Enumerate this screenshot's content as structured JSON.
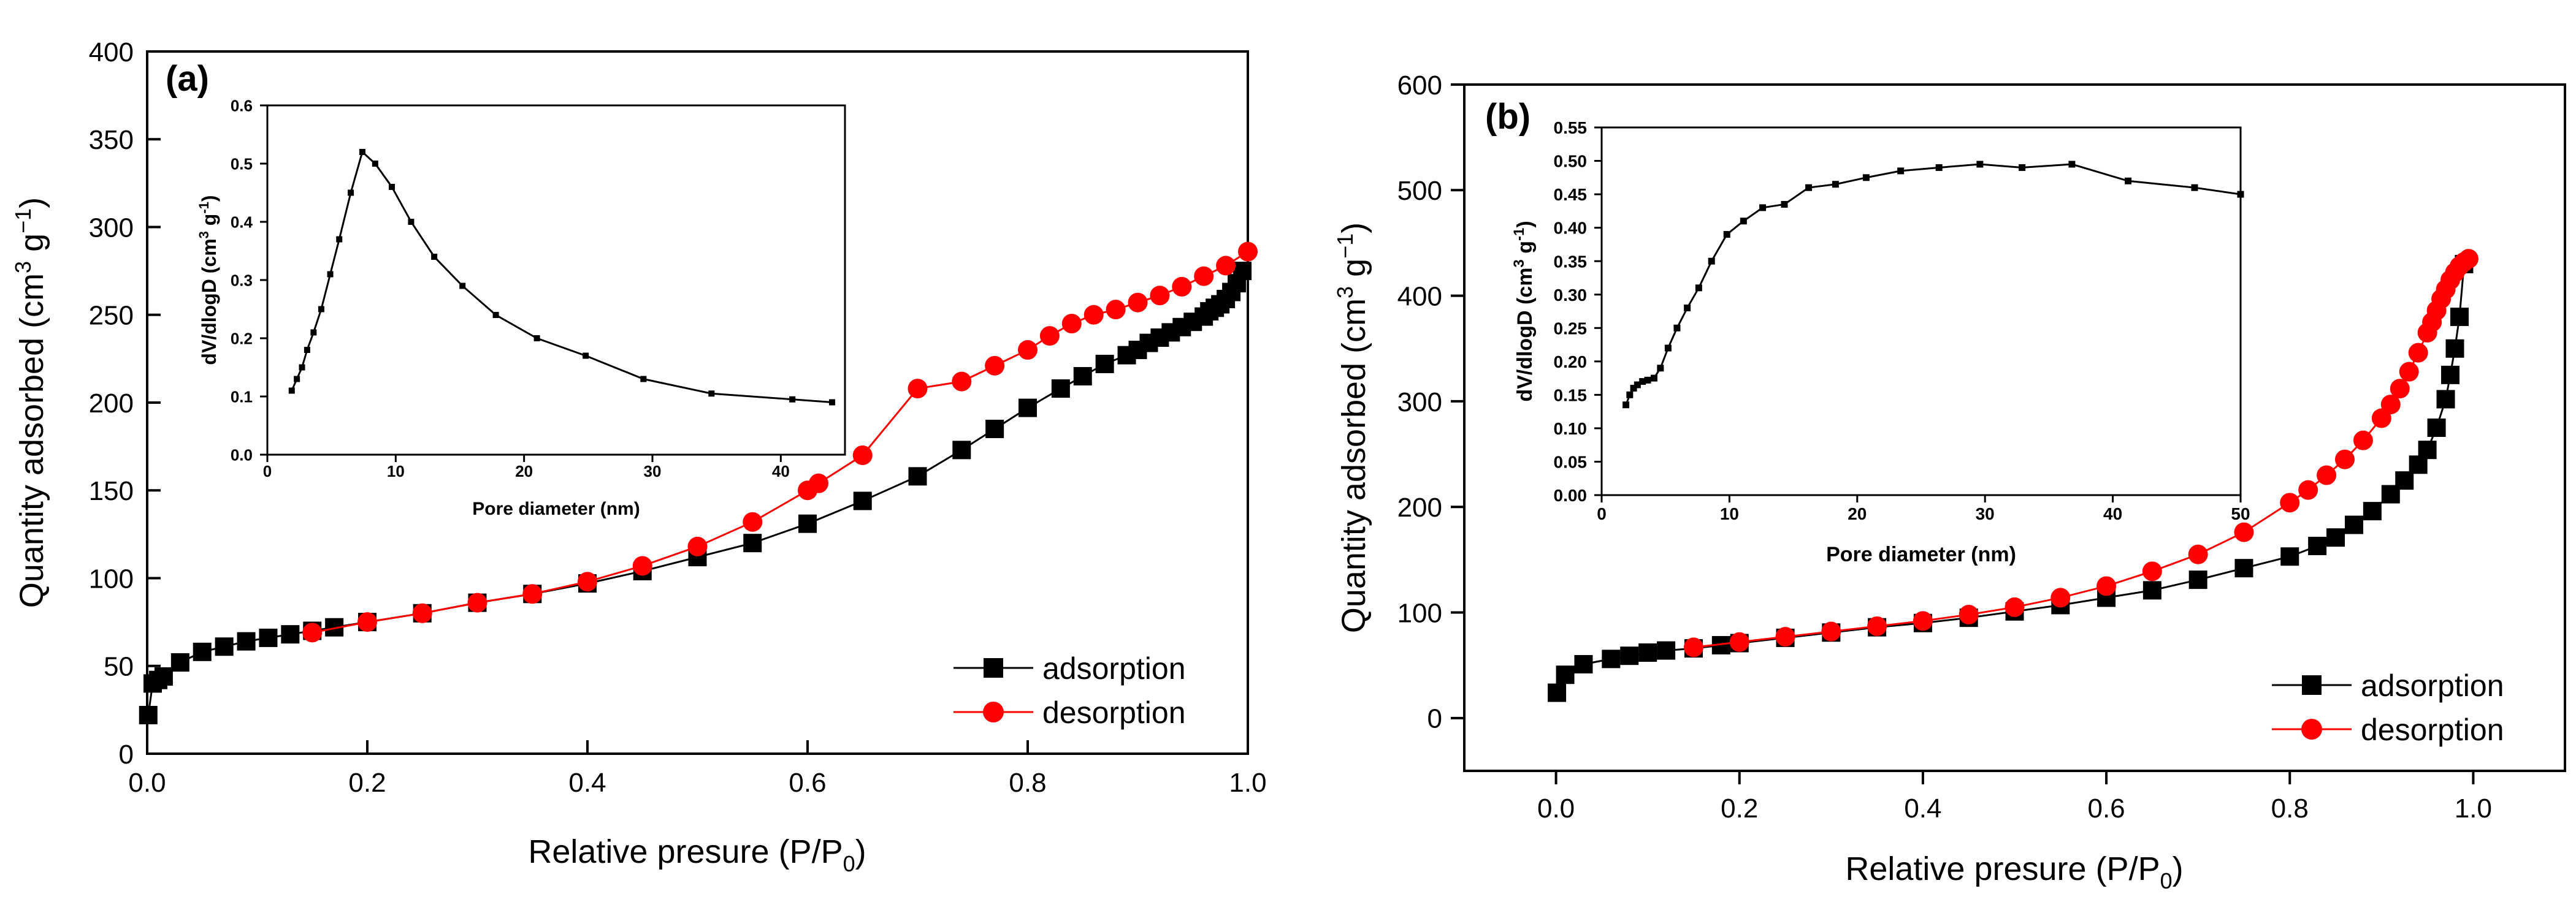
{
  "chart_data": [
    {
      "panel": "(a)",
      "type": "scatter",
      "xlabel": "Relative presure (P/P0)",
      "xlabel_main": "Relative presure (P/P",
      "xlabel_sub": "0",
      "xlabel_close": ")",
      "ylabel": "Quantity adsorbed (cm3 g-1)",
      "ylabel_main": "Quantity adsorbed (cm",
      "ylabel_sup1": "3",
      "ylabel_mid": " g",
      "ylabel_sup2": "−1",
      "ylabel_close": ")",
      "xlim": [
        0,
        1.0
      ],
      "ylim": [
        0,
        400
      ],
      "x_ticks": [
        "0.0",
        "0.2",
        "0.4",
        "0.6",
        "0.8",
        "1.0"
      ],
      "y_ticks": [
        "0",
        "50",
        "100",
        "150",
        "200",
        "250",
        "300",
        "350",
        "400"
      ],
      "legend": {
        "position": "bottom-right",
        "entries": [
          "adsorption",
          "desorption"
        ]
      },
      "series": [
        {
          "name": "adsorption",
          "color": "#000000",
          "marker": "square",
          "x": [
            0.001,
            0.005,
            0.01,
            0.015,
            0.03,
            0.05,
            0.07,
            0.09,
            0.11,
            0.13,
            0.15,
            0.17,
            0.2,
            0.25,
            0.3,
            0.35,
            0.4,
            0.45,
            0.5,
            0.55,
            0.6,
            0.65,
            0.7,
            0.74,
            0.77,
            0.8,
            0.83,
            0.85,
            0.87,
            0.89,
            0.9,
            0.91,
            0.92,
            0.93,
            0.94,
            0.95,
            0.96,
            0.965,
            0.97,
            0.975,
            0.98,
            0.985,
            0.99,
            0.995
          ],
          "y": [
            22,
            40,
            42,
            44,
            52,
            58,
            61,
            64,
            66,
            68,
            70,
            72,
            75,
            80,
            86,
            91,
            97,
            104,
            112,
            120,
            131,
            144,
            158,
            173,
            185,
            197,
            208,
            215,
            222,
            227,
            230,
            234,
            237,
            240,
            243,
            246,
            249,
            252,
            254,
            256,
            259,
            263,
            268,
            275
          ]
        },
        {
          "name": "desorption",
          "color": "#ff0000",
          "marker": "circle",
          "x": [
            1.0,
            0.98,
            0.96,
            0.94,
            0.92,
            0.9,
            0.88,
            0.86,
            0.84,
            0.82,
            0.8,
            0.77,
            0.74,
            0.7,
            0.65,
            0.61,
            0.6,
            0.55,
            0.5,
            0.45,
            0.4,
            0.35,
            0.3,
            0.25,
            0.2,
            0.15
          ],
          "y": [
            286,
            278,
            272,
            266,
            261,
            257,
            253,
            250,
            245,
            238,
            230,
            221,
            212,
            208,
            170,
            154,
            150,
            132,
            118,
            107,
            98,
            91,
            86,
            80,
            75,
            69
          ]
        }
      ],
      "inset": {
        "type": "line",
        "xlabel": "Pore diameter (nm)",
        "ylabel": "dV/dlogD (cm3 g-1)",
        "ylabel_main": "dV/dlogD (cm",
        "ylabel_sup1": "3",
        "ylabel_mid": " g",
        "ylabel_sup2": "-1",
        "ylabel_close": ")",
        "xlim": [
          0,
          45
        ],
        "ylim": [
          0,
          0.6
        ],
        "x_ticks": [
          "0",
          "10",
          "20",
          "30",
          "40"
        ],
        "y_ticks": [
          "0.0",
          "0.1",
          "0.2",
          "0.3",
          "0.4",
          "0.5",
          "0.6"
        ],
        "x": [
          1.9,
          2.3,
          2.7,
          3.1,
          3.6,
          4.2,
          4.9,
          5.6,
          6.5,
          7.4,
          8.4,
          9.7,
          11.2,
          13.0,
          15.2,
          17.8,
          21.0,
          24.8,
          29.3,
          34.6,
          40.9,
          44.0
        ],
        "y": [
          0.11,
          0.13,
          0.15,
          0.18,
          0.21,
          0.25,
          0.31,
          0.37,
          0.45,
          0.52,
          0.5,
          0.46,
          0.4,
          0.34,
          0.29,
          0.24,
          0.2,
          0.17,
          0.13,
          0.105,
          0.095,
          0.09
        ]
      }
    },
    {
      "panel": "(b)",
      "type": "scatter",
      "xlabel": "Relative presure (P/P0)",
      "xlabel_main": "Relative presure (P/P",
      "xlabel_sub": "0",
      "xlabel_close": ")",
      "ylabel": "Quantity adsorbed (cm3 g-1)",
      "ylabel_main": "Quantity adsorbed (cm",
      "ylabel_sup1": "3",
      "ylabel_mid": " g",
      "ylabel_sup2": "−1",
      "ylabel_close": ")",
      "xlim": [
        -0.1,
        1.1
      ],
      "ylim": [
        -50,
        600
      ],
      "x_ticks": [
        "0.0",
        "0.2",
        "0.4",
        "0.6",
        "0.8",
        "1.0"
      ],
      "y_ticks": [
        "0",
        "100",
        "200",
        "300",
        "400",
        "500",
        "600"
      ],
      "legend": {
        "position": "bottom-right",
        "entries": [
          "adsorption",
          "desorption"
        ]
      },
      "series": [
        {
          "name": "adsorption",
          "color": "#000000",
          "marker": "square",
          "x": [
            0.001,
            0.01,
            0.03,
            0.06,
            0.08,
            0.1,
            0.12,
            0.15,
            0.18,
            0.2,
            0.25,
            0.3,
            0.35,
            0.4,
            0.45,
            0.5,
            0.55,
            0.6,
            0.65,
            0.7,
            0.75,
            0.8,
            0.83,
            0.85,
            0.87,
            0.89,
            0.91,
            0.925,
            0.94,
            0.95,
            0.96,
            0.97,
            0.975,
            0.98,
            0.985,
            0.99
          ],
          "y": [
            24,
            41,
            51,
            56,
            59,
            62,
            64,
            66,
            69,
            71,
            76,
            81,
            86,
            90,
            95,
            101,
            107,
            114,
            121,
            131,
            142,
            153,
            163,
            171,
            183,
            196,
            212,
            225,
            240,
            254,
            275,
            302,
            325,
            350,
            380,
            430
          ]
        },
        {
          "name": "desorption",
          "color": "#ff0000",
          "marker": "circle",
          "x": [
            0.995,
            0.99,
            0.985,
            0.98,
            0.975,
            0.97,
            0.965,
            0.96,
            0.955,
            0.95,
            0.94,
            0.93,
            0.92,
            0.91,
            0.9,
            0.88,
            0.86,
            0.84,
            0.82,
            0.8,
            0.75,
            0.7,
            0.65,
            0.6,
            0.55,
            0.5,
            0.45,
            0.4,
            0.35,
            0.3,
            0.25,
            0.2,
            0.15
          ],
          "y": [
            435,
            432,
            428,
            422,
            415,
            406,
            397,
            386,
            375,
            365,
            346,
            328,
            312,
            297,
            284,
            263,
            245,
            230,
            216,
            204,
            176,
            155,
            139,
            125,
            114,
            105,
            98,
            92,
            87,
            82,
            77,
            72,
            67
          ]
        }
      ],
      "inset": {
        "type": "line",
        "xlabel": "Pore diameter (nm)",
        "ylabel": "dV/dlogD (cm3 g-1)",
        "ylabel_main": "dV/dlogD (cm",
        "ylabel_sup1": "3",
        "ylabel_mid": " g",
        "ylabel_sup2": "-1",
        "ylabel_close": ")",
        "xlim": [
          0,
          50
        ],
        "ylim": [
          0,
          0.55
        ],
        "x_ticks": [
          "0",
          "10",
          "20",
          "30",
          "40",
          "50"
        ],
        "y_ticks": [
          "0.00",
          "0.05",
          "0.10",
          "0.15",
          "0.20",
          "0.25",
          "0.30",
          "0.35",
          "0.40",
          "0.45",
          "0.50",
          "0.55"
        ],
        "x": [
          1.9,
          2.2,
          2.5,
          2.8,
          3.2,
          3.6,
          4.1,
          4.6,
          5.2,
          5.9,
          6.7,
          7.6,
          8.6,
          9.8,
          11.1,
          12.6,
          14.3,
          16.2,
          18.3,
          20.7,
          23.4,
          26.4,
          29.6,
          32.9,
          36.8,
          41.2,
          46.4,
          50.0
        ],
        "y": [
          0.135,
          0.15,
          0.16,
          0.165,
          0.17,
          0.172,
          0.175,
          0.19,
          0.22,
          0.25,
          0.28,
          0.31,
          0.35,
          0.39,
          0.41,
          0.43,
          0.435,
          0.46,
          0.465,
          0.475,
          0.485,
          0.49,
          0.495,
          0.49,
          0.495,
          0.47,
          0.46,
          0.45
        ]
      }
    }
  ]
}
